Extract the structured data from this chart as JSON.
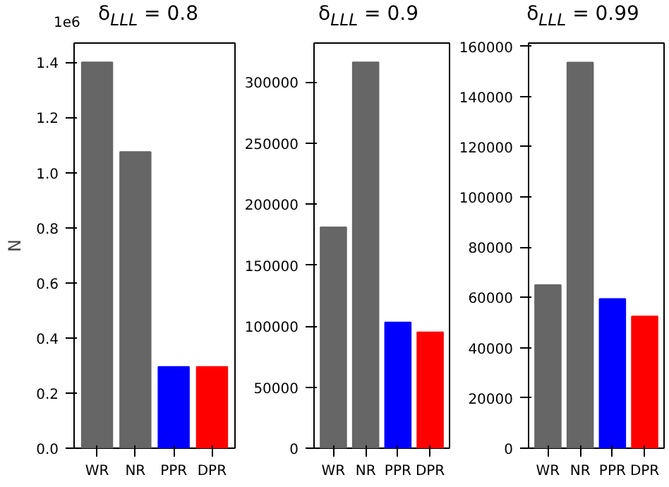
{
  "chart_data": [
    {
      "type": "bar",
      "title": "δ$_{LLL}$ = 0.8",
      "ylabel": "N",
      "categories": [
        "WR",
        "NR",
        "PPR",
        "DPR"
      ],
      "values": [
        1.4,
        1.075,
        0.295,
        0.295
      ],
      "colors": [
        "#666666",
        "#666666",
        "#0000ff",
        "#ff0000"
      ],
      "ylim": [
        0,
        1.47
      ],
      "yticks": [
        {
          "value": 0,
          "label": "0.0"
        },
        0.2,
        0.4,
        0.6,
        0.8,
        {
          "value": 1,
          "label": "1.0"
        },
        1.2,
        1.4
      ],
      "annotations": [
        "1e6"
      ]
    },
    {
      "type": "bar",
      "title": "δ$_{LLL}$ = 0.9",
      "categories": [
        "WR",
        "NR",
        "PPR",
        "DPR"
      ],
      "values": [
        181000,
        316000,
        103000,
        95000
      ],
      "colors": [
        "#666666",
        "#666666",
        "#0000ff",
        "#ff0000"
      ],
      "ylim": [
        0,
        331800
      ],
      "yticks": [
        0,
        50000,
        100000,
        150000,
        200000,
        250000,
        300000
      ]
    },
    {
      "type": "bar",
      "title": "δ$_{LLL}$ = 0.99",
      "categories": [
        "WR",
        "NR",
        "PPR",
        "DPR"
      ],
      "values": [
        65000,
        153600,
        59400,
        52500
      ],
      "colors": [
        "#666666",
        "#666666",
        "#0000ff",
        "#ff0000"
      ],
      "ylim": [
        0,
        161300
      ],
      "yticks": [
        0,
        20000,
        40000,
        60000,
        80000,
        100000,
        120000,
        140000,
        160000
      ]
    }
  ]
}
